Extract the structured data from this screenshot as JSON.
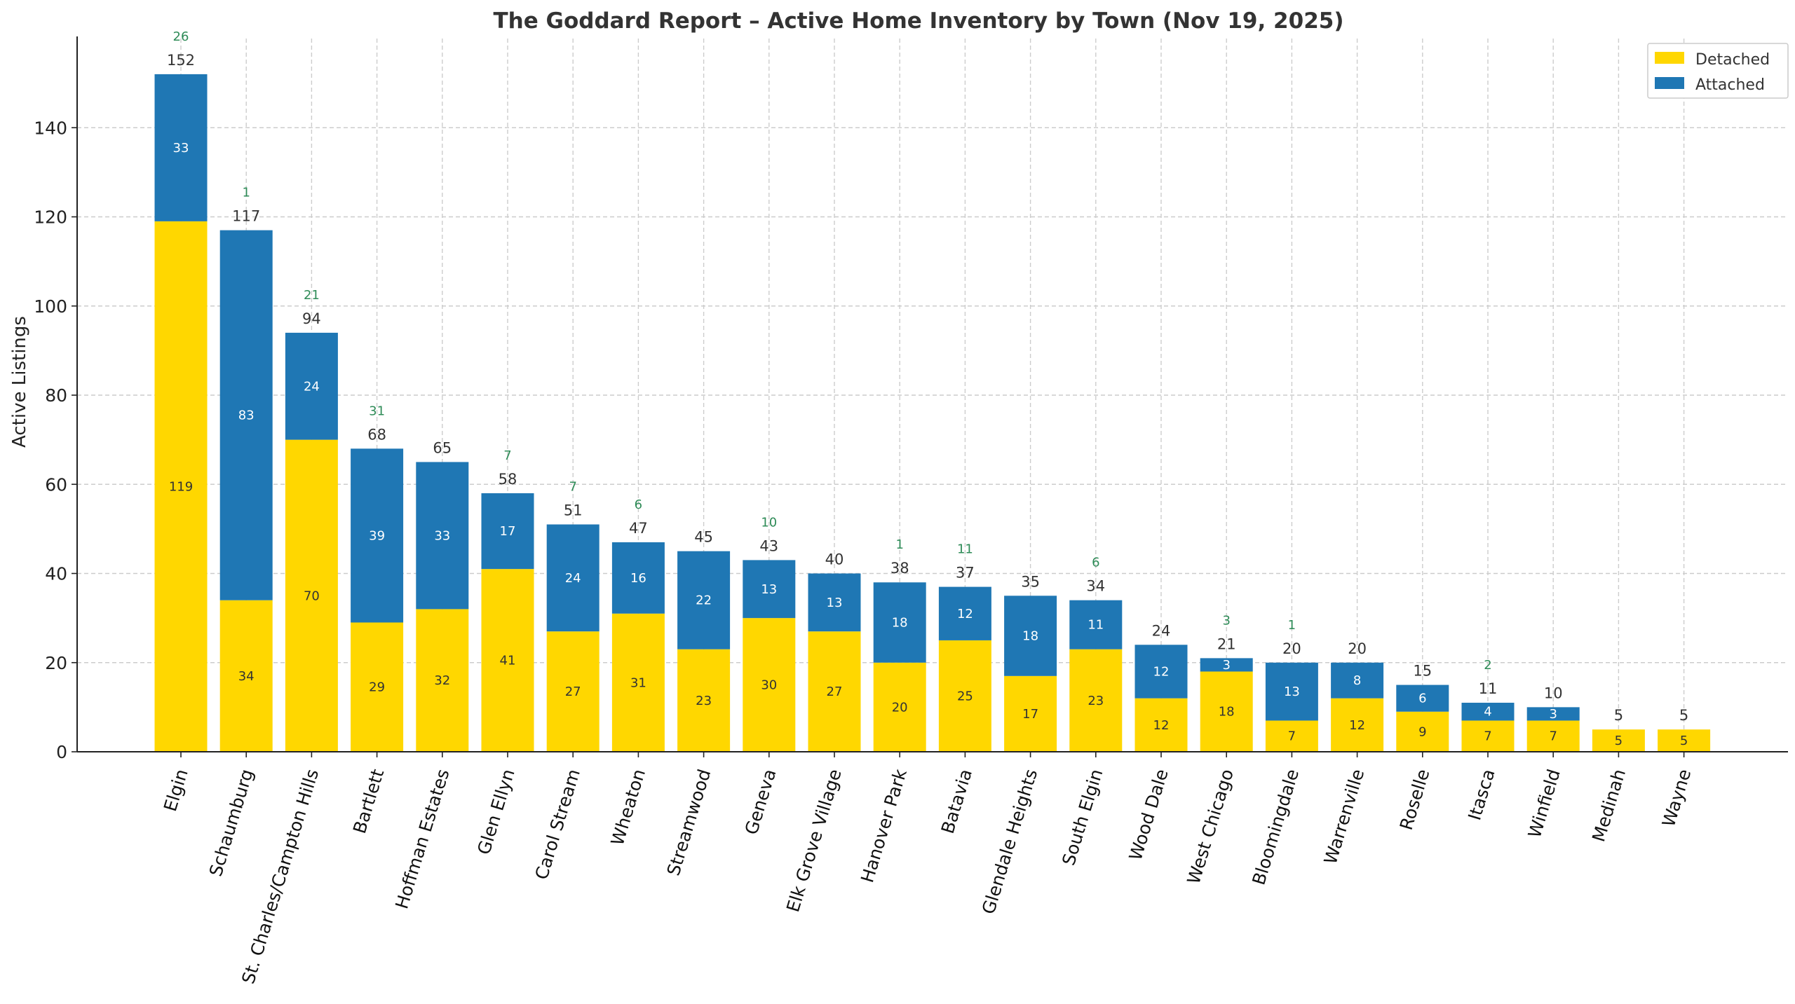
{
  "chart_data": {
    "type": "bar",
    "stacked": true,
    "title": "The Goddard Report – Active Home Inventory by Town (Nov 19, 2025)",
    "xlabel": "",
    "ylabel": "Active Listings",
    "ylim": [
      0,
      160
    ],
    "yticks": [
      0,
      20,
      40,
      60,
      80,
      100,
      120,
      140
    ],
    "grid": true,
    "legend_position": "top-right",
    "categories": [
      "Elgin",
      "Schaumburg",
      "St. Charles/Campton Hills",
      "Bartlett",
      "Hoffman Estates",
      "Glen Ellyn",
      "Carol Stream",
      "Wheaton",
      "Streamwood",
      "Geneva",
      "Elk Grove Village",
      "Hanover Park",
      "Batavia",
      "Glendale Heights",
      "South Elgin",
      "Wood Dale",
      "West Chicago",
      "Bloomingdale",
      "Warrenville",
      "Roselle",
      "Itasca",
      "Winfield",
      "Medinah",
      "Wayne"
    ],
    "series": [
      {
        "name": "Detached",
        "color": "#FFD700",
        "values": [
          119,
          34,
          70,
          29,
          32,
          41,
          27,
          31,
          23,
          30,
          27,
          20,
          25,
          17,
          23,
          12,
          18,
          7,
          12,
          9,
          7,
          7,
          5,
          5
        ]
      },
      {
        "name": "Attached",
        "color": "#1F77B4",
        "values": [
          33,
          83,
          24,
          39,
          33,
          17,
          24,
          16,
          22,
          13,
          13,
          18,
          12,
          18,
          11,
          12,
          3,
          13,
          8,
          6,
          4,
          3,
          0,
          0
        ]
      }
    ],
    "totals": [
      152,
      117,
      94,
      68,
      65,
      58,
      51,
      47,
      45,
      43,
      40,
      38,
      37,
      35,
      34,
      24,
      21,
      20,
      20,
      15,
      11,
      10,
      5,
      5
    ],
    "top_annotations": [
      26,
      1,
      21,
      31,
      null,
      7,
      7,
      6,
      null,
      10,
      null,
      1,
      11,
      null,
      6,
      null,
      3,
      1,
      null,
      null,
      2,
      null,
      null,
      null
    ],
    "annotation_color": "#2E8B57",
    "detached_label_color": "#333333",
    "attached_label_color": "#FFFFFF"
  }
}
